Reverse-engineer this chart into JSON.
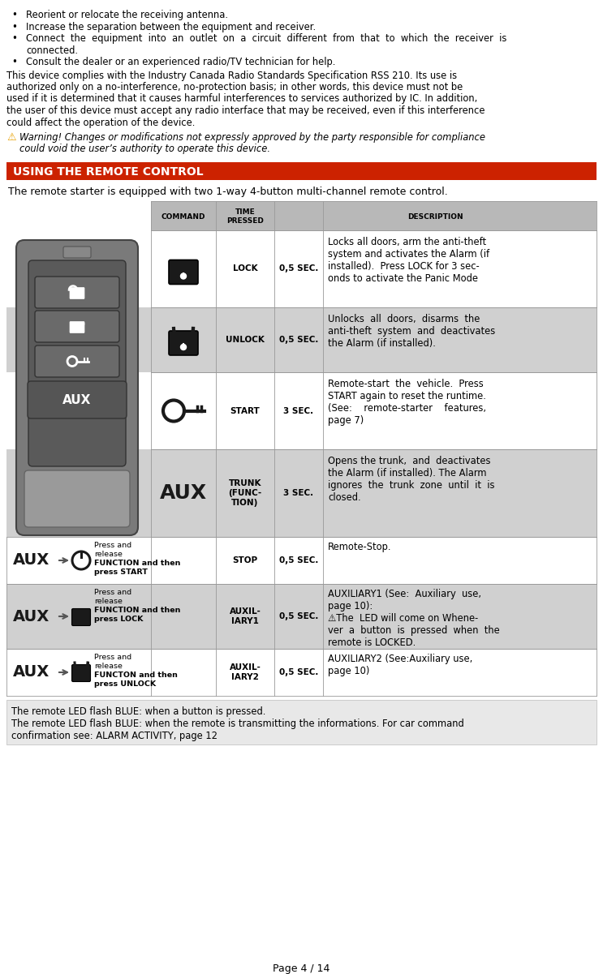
{
  "bg_color": "#ffffff",
  "page_width": 7.43,
  "page_height": 12.01,
  "section_title": "USING THE REMOTE CONTROL",
  "section_bg": "#cc2200",
  "section_text_color": "#ffffff",
  "intro_text": "The remote starter is equipped with two 1-way 4-button multi-channel remote control.",
  "table_header_bg": "#b8b8b8",
  "table_row_bg_light": "#ffffff",
  "table_row_bg_dark": "#d0d0d0",
  "footer_bg": "#eeeeee",
  "page_num": "Page 4 / 14"
}
